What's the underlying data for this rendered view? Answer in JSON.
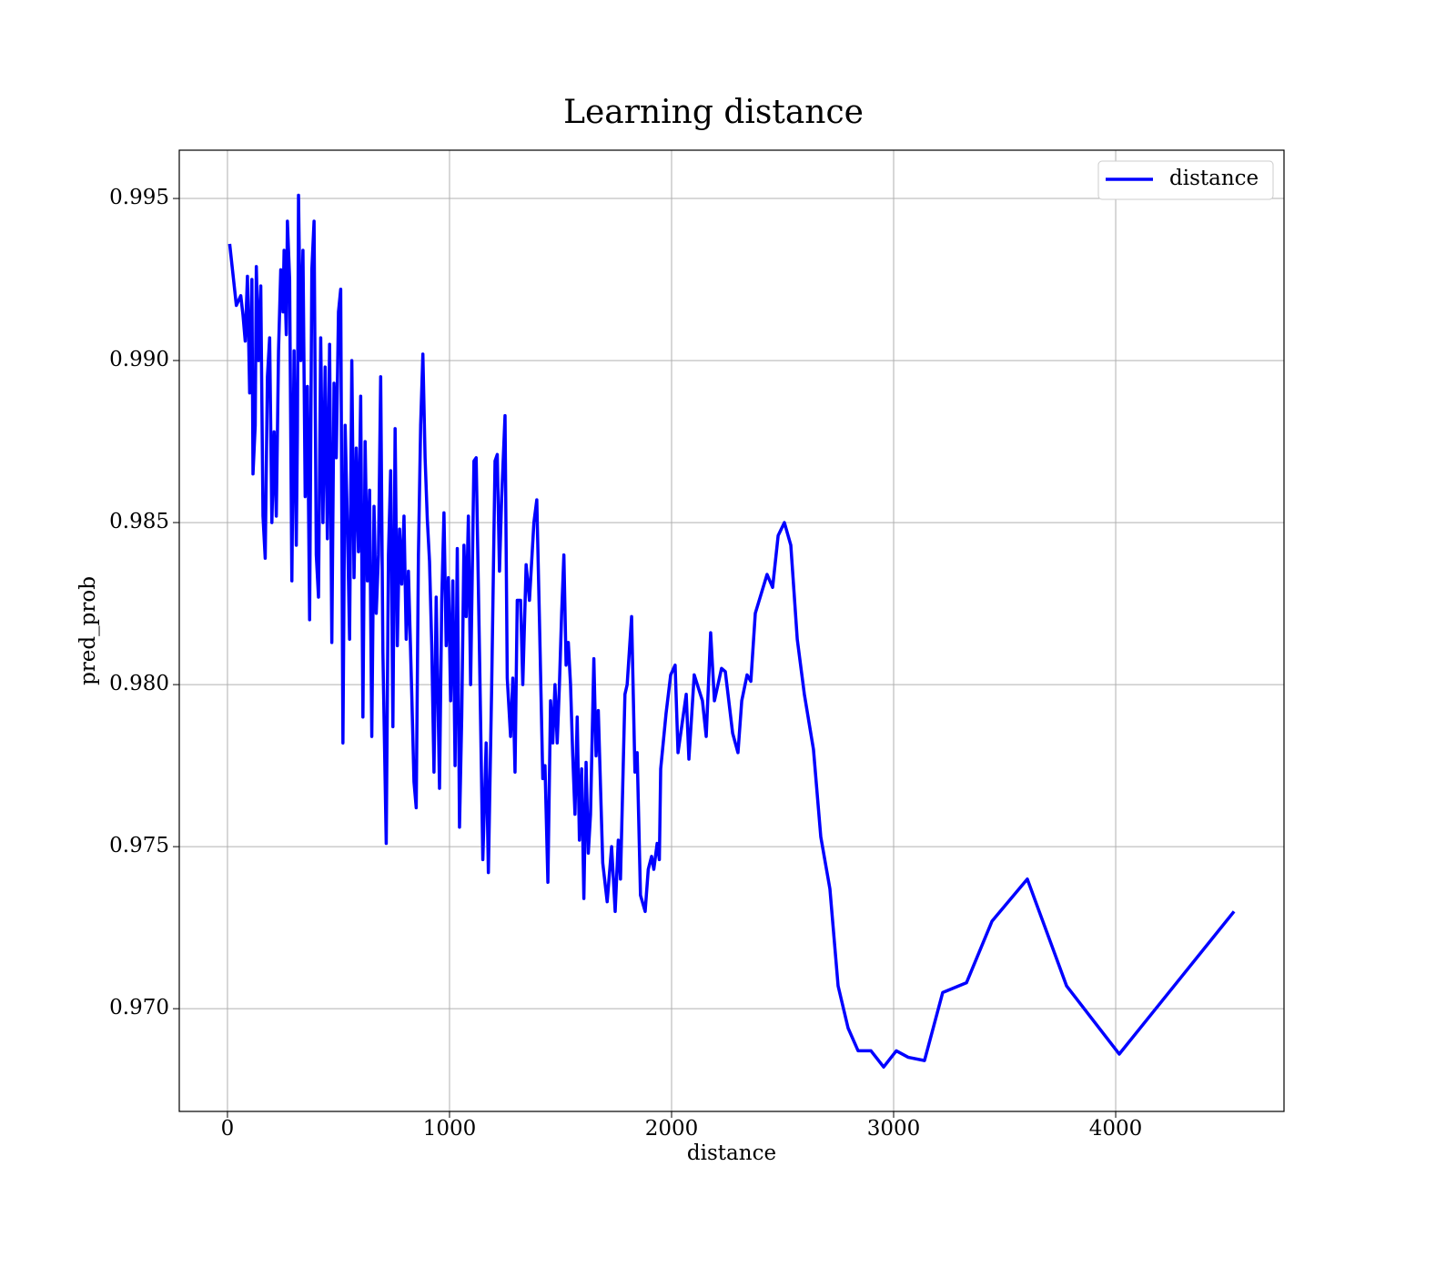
{
  "chart_data": {
    "type": "line",
    "title": "Learning distance",
    "xlabel": "distance",
    "ylabel": "pred_prob",
    "x": [
      10,
      40,
      60,
      70,
      80,
      90,
      100,
      110,
      115,
      125,
      130,
      140,
      150,
      160,
      170,
      180,
      190,
      200,
      210,
      220,
      230,
      240,
      250,
      255,
      265,
      270,
      280,
      290,
      300,
      310,
      315,
      320,
      330,
      340,
      350,
      360,
      370,
      380,
      390,
      400,
      410,
      420,
      430,
      440,
      450,
      460,
      470,
      480,
      490,
      500,
      510,
      520,
      530,
      540,
      550,
      560,
      570,
      580,
      590,
      600,
      610,
      620,
      630,
      640,
      650,
      660,
      670,
      680,
      690,
      700,
      715,
      725,
      735,
      745,
      755,
      765,
      775,
      785,
      795,
      805,
      815,
      830,
      840,
      850,
      860,
      870,
      880,
      890,
      900,
      910,
      920,
      930,
      940,
      955,
      965,
      975,
      985,
      995,
      1005,
      1015,
      1025,
      1035,
      1045,
      1055,
      1065,
      1075,
      1085,
      1095,
      1110,
      1120,
      1135,
      1150,
      1165,
      1175,
      1190,
      1205,
      1215,
      1225,
      1235,
      1250,
      1260,
      1275,
      1285,
      1295,
      1305,
      1320,
      1330,
      1345,
      1360,
      1380,
      1393,
      1405,
      1420,
      1430,
      1443,
      1455,
      1465,
      1475,
      1485,
      1495,
      1505,
      1515,
      1525,
      1535,
      1545,
      1555,
      1565,
      1575,
      1585,
      1595,
      1605,
      1615,
      1625,
      1635,
      1650,
      1660,
      1670,
      1690,
      1710,
      1730,
      1746,
      1760,
      1770,
      1790,
      1800,
      1820,
      1835,
      1845,
      1860,
      1881,
      1895,
      1910,
      1920,
      1935,
      1945,
      1951,
      1975,
      1996,
      2016,
      2029,
      2066,
      2078,
      2102,
      2139,
      2156,
      2176,
      2193,
      2225,
      2242,
      2275,
      2299,
      2316,
      2340,
      2357,
      2377,
      2430,
      2455,
      2480,
      2508,
      2537,
      2566,
      2598,
      2639,
      2672,
      2713,
      2750,
      2795,
      2840,
      2898,
      2955,
      3012,
      3066,
      3139,
      3221,
      3328,
      3443,
      3602,
      3779,
      4016,
      4533
    ],
    "series": [
      {
        "name": "distance",
        "color": "#0000ff",
        "values": [
          0.9936,
          0.9917,
          0.992,
          0.9914,
          0.9906,
          0.9926,
          0.989,
          0.9925,
          0.9865,
          0.988,
          0.9929,
          0.99,
          0.9923,
          0.9852,
          0.9839,
          0.9895,
          0.9907,
          0.985,
          0.9878,
          0.9852,
          0.9903,
          0.9928,
          0.9915,
          0.9934,
          0.9908,
          0.9943,
          0.9925,
          0.9832,
          0.9903,
          0.9843,
          0.9878,
          0.9951,
          0.99,
          0.9934,
          0.9858,
          0.9892,
          0.982,
          0.9928,
          0.9943,
          0.984,
          0.9827,
          0.9907,
          0.985,
          0.9898,
          0.9845,
          0.9905,
          0.9813,
          0.9893,
          0.987,
          0.9915,
          0.9922,
          0.9782,
          0.988,
          0.985,
          0.9814,
          0.99,
          0.9833,
          0.9873,
          0.9841,
          0.9889,
          0.979,
          0.9875,
          0.9832,
          0.986,
          0.9784,
          0.9855,
          0.9822,
          0.984,
          0.9895,
          0.981,
          0.9751,
          0.984,
          0.9866,
          0.9787,
          0.9879,
          0.9812,
          0.9848,
          0.9831,
          0.9852,
          0.9814,
          0.9835,
          0.9797,
          0.977,
          0.9762,
          0.984,
          0.988,
          0.9902,
          0.987,
          0.9851,
          0.9838,
          0.9812,
          0.9773,
          0.9827,
          0.9768,
          0.9826,
          0.9853,
          0.9812,
          0.9833,
          0.9795,
          0.9832,
          0.9775,
          0.9842,
          0.9756,
          0.979,
          0.9843,
          0.9821,
          0.9852,
          0.98,
          0.9869,
          0.987,
          0.981,
          0.9746,
          0.9782,
          0.9742,
          0.98,
          0.9869,
          0.9871,
          0.9835,
          0.9858,
          0.9883,
          0.9802,
          0.9784,
          0.9802,
          0.9773,
          0.9826,
          0.9826,
          0.98,
          0.9837,
          0.9826,
          0.985,
          0.9857,
          0.982,
          0.9771,
          0.9775,
          0.9739,
          0.9795,
          0.9782,
          0.98,
          0.9782,
          0.98,
          0.9822,
          0.984,
          0.9806,
          0.9813,
          0.98,
          0.9778,
          0.976,
          0.979,
          0.9752,
          0.9774,
          0.9734,
          0.9776,
          0.9748,
          0.976,
          0.9808,
          0.9778,
          0.9792,
          0.9745,
          0.9733,
          0.975,
          0.973,
          0.9752,
          0.974,
          0.9797,
          0.98,
          0.9821,
          0.9773,
          0.9779,
          0.9735,
          0.973,
          0.9743,
          0.9747,
          0.9743,
          0.9751,
          0.9746,
          0.9774,
          0.9791,
          0.9803,
          0.9806,
          0.9779,
          0.9797,
          0.9777,
          0.9803,
          0.9795,
          0.9784,
          0.9816,
          0.9795,
          0.9805,
          0.9804,
          0.9785,
          0.9779,
          0.9795,
          0.9803,
          0.9801,
          0.9822,
          0.9834,
          0.983,
          0.9846,
          0.985,
          0.9843,
          0.9814,
          0.9797,
          0.978,
          0.9753,
          0.9737,
          0.9707,
          0.9694,
          0.9687,
          0.9687,
          0.9682,
          0.9687,
          0.9685,
          0.9684,
          0.9705,
          0.9708,
          0.9727,
          0.974,
          0.9707,
          0.9686,
          0.973
        ]
      }
    ],
    "xlim": [
      -217,
      4758
    ],
    "ylim": [
      0.96683,
      0.99649
    ],
    "xticks": [
      0,
      1000,
      2000,
      3000,
      4000
    ],
    "yticks": [
      {
        "value": 0.97,
        "label": "0.970"
      },
      {
        "value": 0.975,
        "label": "0.975"
      },
      {
        "value": 0.98,
        "label": "0.980"
      },
      {
        "value": 0.985,
        "label": "0.985"
      },
      {
        "value": 0.99,
        "label": "0.990"
      },
      {
        "value": 0.995,
        "label": "0.995"
      }
    ],
    "grid": true,
    "legend": "upper right"
  }
}
